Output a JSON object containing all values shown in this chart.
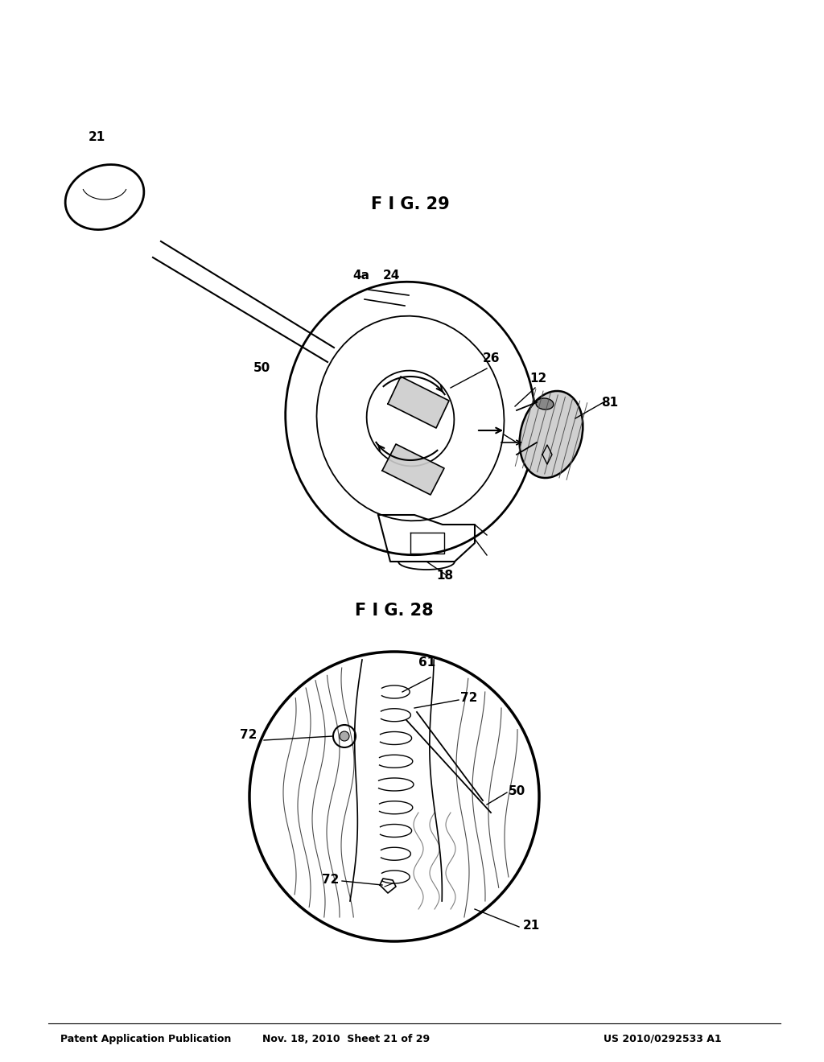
{
  "background_color": "#ffffff",
  "header_left": "Patent Application Publication",
  "header_mid": "Nov. 18, 2010  Sheet 21 of 29",
  "header_right": "US 2010/0292533 A1",
  "fig28_label": "F I G. 28",
  "fig29_label": "F I G. 29",
  "line_color": "#000000",
  "text_color": "#000000"
}
